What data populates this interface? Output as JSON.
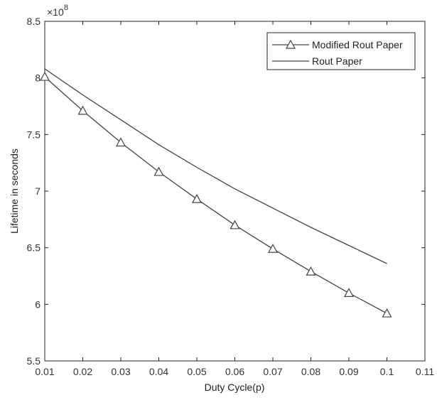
{
  "chart_data": {
    "type": "line",
    "xlabel": "Duty Cycle(p)",
    "ylabel": "Lifetime in seconds",
    "y_multiplier": "×10",
    "y_multiplier_exponent": "8",
    "xlim": [
      0.01,
      0.11
    ],
    "ylim": [
      5.5,
      8.5
    ],
    "xticks": [
      "0.01",
      "0.02",
      "0.03",
      "0.04",
      "0.05",
      "0.06",
      "0.07",
      "0.08",
      "0.09",
      "0.1",
      "0.11"
    ],
    "yticks": [
      "5.5",
      "6",
      "6.5",
      "7",
      "7.5",
      "8",
      "8.5"
    ],
    "x": [
      0.01,
      0.02,
      0.03,
      0.04,
      0.05,
      0.06,
      0.07,
      0.08,
      0.09,
      0.1
    ],
    "grid": false,
    "legend_position": "top-right",
    "series": [
      {
        "name": "Modified Rout Paper",
        "marker": "triangle",
        "color": "#444444",
        "values": [
          8.01,
          7.71,
          7.43,
          7.17,
          6.93,
          6.7,
          6.49,
          6.29,
          6.1,
          5.92
        ]
      },
      {
        "name": "Rout Paper",
        "marker": "none",
        "color": "#444444",
        "values": [
          8.08,
          7.85,
          7.63,
          7.41,
          7.21,
          7.02,
          6.85,
          6.68,
          6.52,
          6.36
        ]
      }
    ]
  }
}
